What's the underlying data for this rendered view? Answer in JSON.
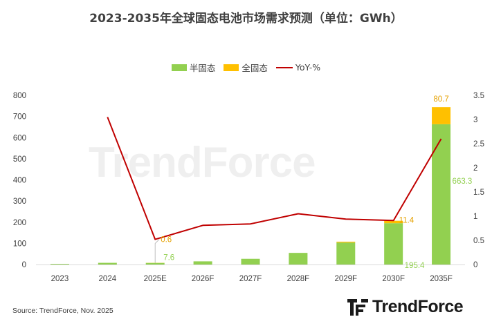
{
  "title": "2023-2035年全球固态电池市场需求预测（单位：GWh）",
  "source": "Source: TrendForce, Nov. 2025",
  "logo_text": "TrendForce",
  "watermark_text": "TrendForce",
  "colors": {
    "semi": "#92d050",
    "full": "#ffc000",
    "yoy": "#c00000",
    "semi_label": "#92d050",
    "full_label": "#e5a100"
  },
  "chart_data": {
    "type": "bar",
    "stacked": true,
    "categories": [
      "2023",
      "2024",
      "2025E",
      "2026F",
      "2027F",
      "2028F",
      "2029F",
      "2030F",
      "2035F"
    ],
    "series": [
      {
        "name": "半固态",
        "axis": "left",
        "values": [
          3,
          8,
          7.6,
          15,
          27,
          55,
          104,
          195.4,
          663.3
        ]
      },
      {
        "name": "全固态",
        "axis": "left",
        "values": [
          0,
          0,
          0.6,
          0,
          0,
          0,
          4,
          11.4,
          80.7
        ]
      },
      {
        "name": "YoY-%",
        "type": "line",
        "axis": "right",
        "values": [
          null,
          3.05,
          0.52,
          0.81,
          0.84,
          1.05,
          0.94,
          0.91,
          2.6
        ]
      }
    ],
    "data_labels": [
      {
        "category": "2025E",
        "series": "全固态",
        "text": "0.6"
      },
      {
        "category": "2025E",
        "series": "半固态",
        "text": "7.6"
      },
      {
        "category": "2030F",
        "series": "全固态",
        "text": "11.4"
      },
      {
        "category": "2030F",
        "series": "半固态",
        "text": "195.4"
      },
      {
        "category": "2035F",
        "series": "全固态",
        "text": "80.7"
      },
      {
        "category": "2035F",
        "series": "半固态",
        "text": "663.3"
      }
    ],
    "y_left": {
      "ylim": [
        0,
        800
      ],
      "ticks": [
        "0",
        "100",
        "200",
        "300",
        "400",
        "500",
        "600",
        "700",
        "800"
      ]
    },
    "y_right": {
      "ylim": [
        0,
        3.5
      ],
      "ticks": [
        "0",
        "0.5",
        "1",
        "1.5",
        "2",
        "2.5",
        "3",
        "3.5"
      ]
    },
    "grid": false,
    "legend_position": "top-center"
  }
}
